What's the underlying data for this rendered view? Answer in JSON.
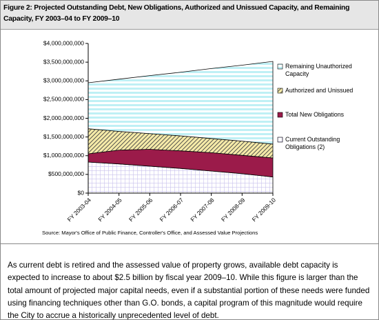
{
  "chart_data": {
    "type": "stacked-area",
    "title": "Figure 2: Projected Outstanding Debt, New Obligations, Authorized and Unissued Capacity, and Remaining Capacity, FY 2003–04 to FY 2009–10",
    "source": "Source: Mayor's Office of Public Finance, Controller's Office, and Assessed Value Projections",
    "categories": [
      "FY 2003-04",
      "FY 2004-05",
      "FY 2005-06",
      "FY 2006-07",
      "FY 2007-08",
      "FY 2008-09",
      "FY 2009-10"
    ],
    "series": [
      {
        "name": "Current Outstanding Obligations (2)",
        "color": "#c8c0ec",
        "pattern": "grid",
        "values": [
          830000000,
          780000000,
          720000000,
          660000000,
          590000000,
          520000000,
          430000000
        ]
      },
      {
        "name": "Total New Obligations",
        "color": "#9b1b4a",
        "pattern": "solid",
        "values": [
          220000000,
          370000000,
          450000000,
          470000000,
          490000000,
          490000000,
          510000000
        ]
      },
      {
        "name": "Authorized and Unissued",
        "color": "#f5eaa8",
        "pattern": "diagonal",
        "values": [
          670000000,
          500000000,
          420000000,
          400000000,
          380000000,
          380000000,
          370000000
        ]
      },
      {
        "name": "Remaining Unauthorized Capacity",
        "color": "#bff0f5",
        "pattern": "stripes",
        "values": [
          1230000000,
          1395000000,
          1550000000,
          1700000000,
          1870000000,
          2030000000,
          2210000000
        ]
      }
    ],
    "ylim": [
      0,
      4000000000
    ],
    "yticks": [
      {
        "value": 0,
        "label": "$0"
      },
      {
        "value": 500000000,
        "label": "$500,000,000"
      },
      {
        "value": 1000000000,
        "label": "$1,000,000,000"
      },
      {
        "value": 1500000000,
        "label": "$1,500,000,000"
      },
      {
        "value": 2000000000,
        "label": "$2,000,000,000"
      },
      {
        "value": 2500000000,
        "label": "$2,500,000,000"
      },
      {
        "value": 3000000000,
        "label": "$3,000,000,000"
      },
      {
        "value": 3500000000,
        "label": "$3,500,000,000"
      },
      {
        "value": 4000000000,
        "label": "$4,000,000,000"
      }
    ],
    "grid": false,
    "legend": "right"
  },
  "body_text": "As current debt is retired and the assessed value of property grows, available debt capacity is expected to increase to about $2.5 billion by fiscal year 2009–10. While this figure is larger than the total amount of projected major capital needs, even if a substantial portion of these needs were funded using financing techniques other than G.O. bonds, a capital program of this magnitude would require the City to accrue a historically unprecedented level of debt."
}
